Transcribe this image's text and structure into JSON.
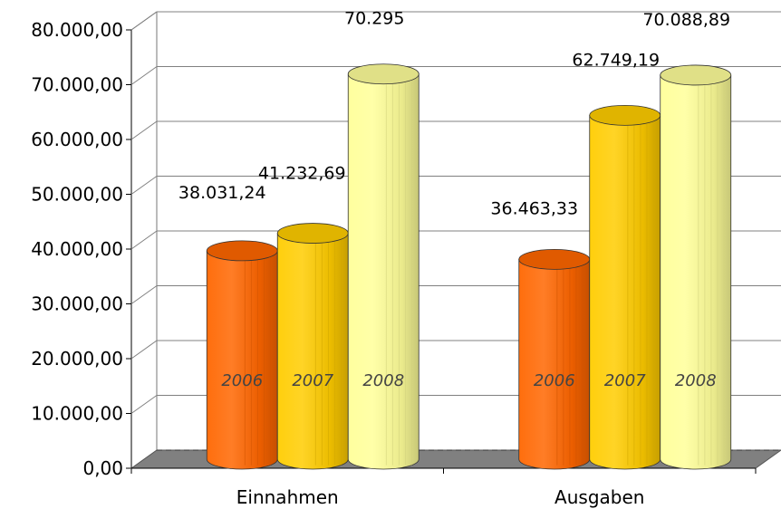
{
  "chart_data": {
    "type": "bar",
    "style": "3d-cylinder",
    "categories": [
      "Einnahmen",
      "Ausgaben"
    ],
    "series": [
      {
        "name": "2006",
        "color": "#ff6600",
        "values": [
          38031.24,
          36463.33
        ],
        "labels": [
          "38.031,24",
          "36.463,33"
        ]
      },
      {
        "name": "2007",
        "color": "#ffcc00",
        "values": [
          41232.69,
          62749.19
        ],
        "labels": [
          "41.232,69",
          "62.749,19"
        ]
      },
      {
        "name": "2008",
        "color": "#ffff99",
        "values": [
          70295,
          70088.89
        ],
        "labels": [
          "70.295",
          "70.088,89"
        ]
      }
    ],
    "y_ticks": [
      "0,00",
      "10.000,00",
      "20.000,00",
      "30.000,00",
      "40.000,00",
      "50.000,00",
      "60.000,00",
      "70.000,00",
      "80.000,00"
    ],
    "ylim": [
      0,
      80000
    ],
    "title": "",
    "xlabel": "",
    "ylabel": "",
    "grid": true,
    "legend": "none",
    "floor_color": "#808080"
  }
}
